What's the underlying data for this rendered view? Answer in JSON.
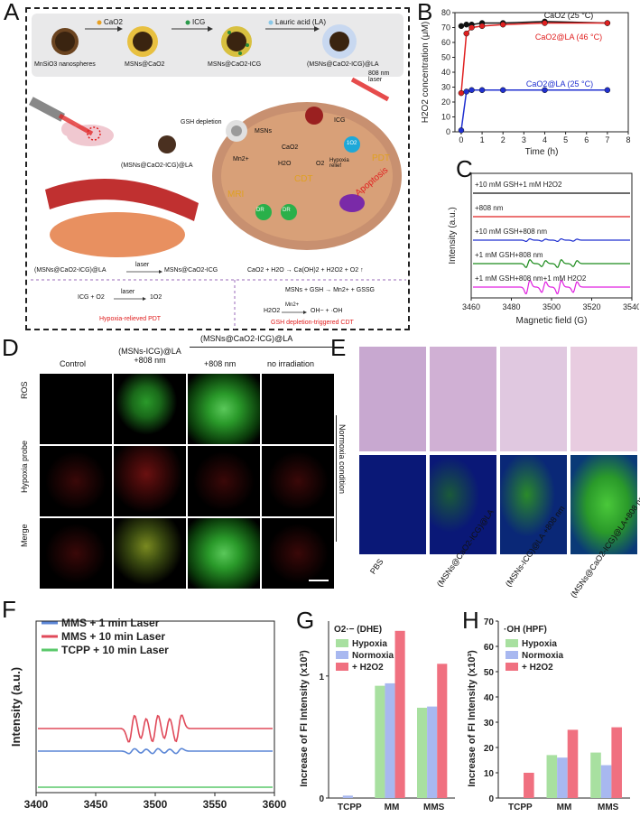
{
  "panels": {
    "A": "A",
    "B": "B",
    "C": "C",
    "D": "D",
    "E": "E",
    "F": "F",
    "G": "G",
    "H": "H"
  },
  "panelA": {
    "steps": [
      {
        "reagent": "CaO2",
        "product": "MnSiO3 nanospheres"
      },
      {
        "reagent": "ICG",
        "product": "MSNs@CaO2"
      },
      {
        "reagent": "Lauric acid (LA)",
        "product": "MSNs@CaO2-ICG"
      },
      {
        "reagent": "",
        "product": "(MSNs@CaO2-ICG)@LA"
      }
    ],
    "laser": "808 nm laser",
    "particle_label": "(MSNs@CaO2-ICG)@LA",
    "tumor_labels": [
      "GSH depletion",
      "MSNs",
      "CaO2",
      "ICG",
      "Hypoxia relief",
      "PDT",
      "CDT",
      "MRI",
      "Apoptosis",
      "H2O",
      "O2",
      "Mn2+",
      "DR",
      "DR",
      "1O2"
    ],
    "eq1_left": "(MSNs@CaO2-ICG)@LA",
    "eq1_cond": "laser",
    "eq1_right": "MSNs@CaO2-ICG",
    "eq2": "CaO2 + H2O → Ca(OH)2 + H2O2 + O2 ↑",
    "eq3_left": "ICG + O2",
    "eq3_cond": "laser",
    "eq3_right": "1O2",
    "eq4": "MSNs + GSH → Mn2+ + GSSG",
    "eq5_left": "H2O2",
    "eq5_cond": "Mn2+",
    "eq5_right": "OH− + ·OH",
    "caption_left": "Hypoxia-relieved PDT",
    "caption_right": "GSH depletion-triggered CDT"
  },
  "chart_data": [
    {
      "id": "B",
      "type": "line",
      "xlabel": "Time (h)",
      "ylabel": "H2O2 concentration (μM)",
      "xlim": [
        -0.3,
        8
      ],
      "ylim": [
        0,
        80
      ],
      "xticks": [
        0,
        1,
        2,
        3,
        4,
        5,
        6,
        7,
        8
      ],
      "yticks": [
        0,
        10,
        20,
        30,
        40,
        50,
        60,
        70,
        80
      ],
      "series": [
        {
          "name": "CaO2 (25 °C)",
          "color": "#111111",
          "x": [
            0,
            0.25,
            0.5,
            1,
            2,
            4,
            7
          ],
          "y": [
            71,
            72,
            72,
            73,
            73,
            74,
            73
          ]
        },
        {
          "name": "CaO2@LA (46 °C)",
          "color": "#e02020",
          "x": [
            0,
            0.25,
            0.5,
            1,
            2,
            4,
            7
          ],
          "y": [
            26,
            66,
            70,
            71,
            72,
            73,
            73
          ]
        },
        {
          "name": "CaO2@LA (25 °C)",
          "color": "#2030d0",
          "x": [
            0,
            0.25,
            0.5,
            1,
            2,
            4,
            7
          ],
          "y": [
            1,
            27,
            28,
            28,
            28,
            28,
            28
          ]
        }
      ]
    },
    {
      "id": "C",
      "type": "line",
      "xlabel": "Magnetic field (G)",
      "ylabel": "Intensity (a.u.)",
      "xticks": [
        3460,
        3480,
        3500,
        3520,
        3540
      ],
      "series": [
        {
          "name": "+10 mM GSH+1 mM H2O2",
          "color": "#111111",
          "amp": 0
        },
        {
          "name": "+808 nm",
          "color": "#e02020",
          "amp": 0
        },
        {
          "name": "+10 mM GSH+808 nm",
          "color": "#2030d0",
          "amp": 0.3
        },
        {
          "name": "+1 mM GSH+808 nm",
          "color": "#1a8a1a",
          "amp": 0.9
        },
        {
          "name": "+1 mM GSH+808 nm+1 mM H2O2",
          "color": "#e020e0",
          "amp": 1.6
        }
      ]
    },
    {
      "id": "F",
      "type": "line",
      "xlabel": "",
      "ylabel": "Intensity (a.u.)",
      "xticks": [
        3400,
        3450,
        3500,
        3550,
        3600
      ],
      "series": [
        {
          "name": "MMS + 1 min Laser",
          "color": "#5b86d6",
          "amp": 0.3
        },
        {
          "name": "MMS + 10 min Laser",
          "color": "#e04a5a",
          "amp": 1.6
        },
        {
          "name": "TCPP + 10 min Laser",
          "color": "#5ac86a",
          "amp": 0
        }
      ]
    },
    {
      "id": "G",
      "type": "bar",
      "title": "O2·− (DHE)",
      "ylabel": "Increase of FI Intensity (x10³)",
      "categories": [
        "TCPP",
        "MM",
        "MMS"
      ],
      "ylim": [
        0,
        1.45
      ],
      "yticks": [
        0,
        1
      ],
      "series": [
        {
          "name": "Hypoxia",
          "color": "#a8e0a0",
          "values": [
            0.0,
            0.92,
            0.74
          ]
        },
        {
          "name": "Normoxia",
          "color": "#a8b8f0",
          "values": [
            0.02,
            0.94,
            0.75
          ]
        },
        {
          "name": "+ H2O2",
          "color": "#f07080",
          "values": [
            0.0,
            1.37,
            1.1
          ]
        }
      ]
    },
    {
      "id": "H",
      "type": "bar",
      "title": "·OH (HPF)",
      "ylabel": "Increase of FI Intensity (x10³)",
      "categories": [
        "TCPP",
        "MM",
        "MMS"
      ],
      "ylim": [
        0,
        70
      ],
      "yticks": [
        0,
        10,
        20,
        30,
        40,
        50,
        60,
        70
      ],
      "series": [
        {
          "name": "Hypoxia",
          "color": "#a8e0a0",
          "values": [
            0,
            17,
            18
          ]
        },
        {
          "name": "Normoxia",
          "color": "#a8b8f0",
          "values": [
            0,
            16,
            13
          ]
        },
        {
          "name": "+ H2O2",
          "color": "#f07080",
          "values": [
            10,
            27,
            28
          ]
        }
      ]
    }
  ],
  "panelD": {
    "cols": [
      "Control",
      "(MSNs-ICG)@LA +808 nm",
      "+808 nm",
      "no irradiation"
    ],
    "group_header": "(MSNs@CaO2-ICG)@LA",
    "rows": [
      "ROS",
      "Hypoxia probe",
      "Merge"
    ],
    "side": "Normoxia condition"
  },
  "panelE": {
    "cols": [
      "PBS",
      "(MSNs@CaO2-ICG)@LA",
      "(MSNs-ICG)@LA +808 nm",
      "(MSNs@CaO2-ICG)@LA+808 nm"
    ]
  }
}
